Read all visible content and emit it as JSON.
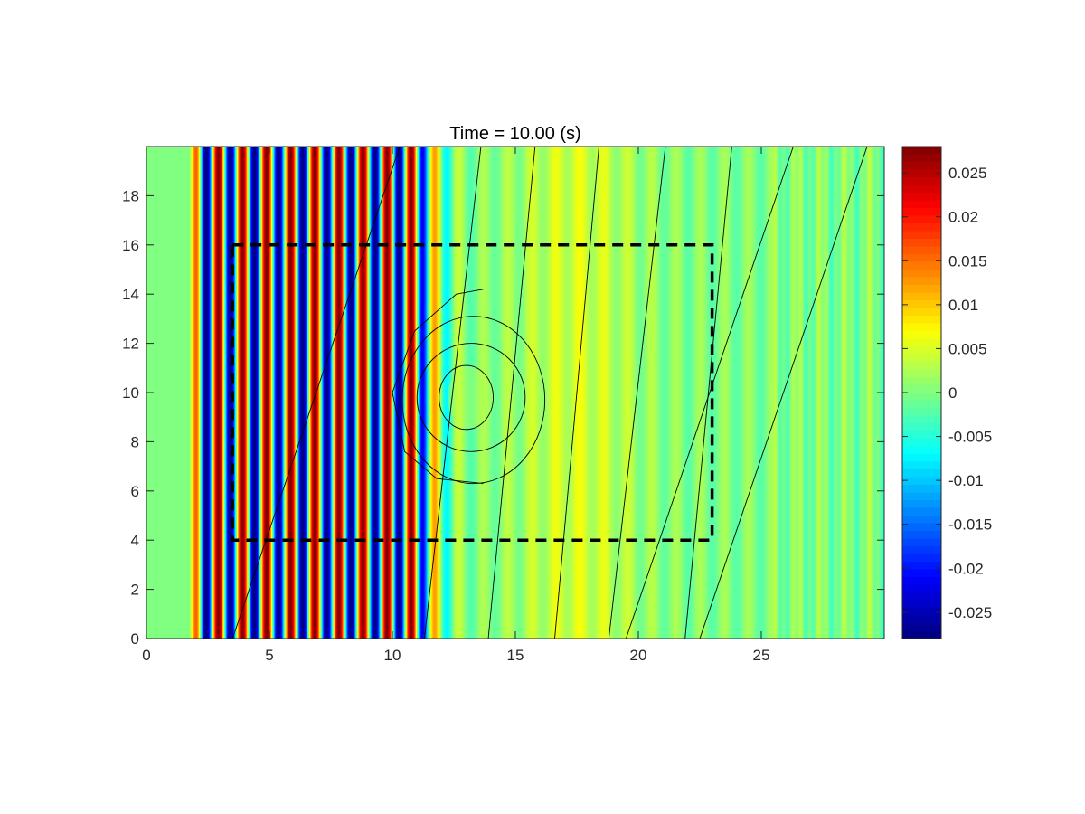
{
  "chart_data": {
    "type": "heatmap",
    "title": "Time = 10.00 (s)",
    "xlabel": "",
    "ylabel": "",
    "xlim": [
      0,
      30
    ],
    "ylim": [
      0,
      20
    ],
    "x_ticks": [
      0,
      5,
      10,
      15,
      20,
      25
    ],
    "x_tick_labels": [
      "0",
      "5",
      "10",
      "15",
      "20",
      "25"
    ],
    "y_ticks": [
      0,
      2,
      4,
      6,
      8,
      10,
      12,
      14,
      16,
      18
    ],
    "y_tick_labels": [
      "0",
      "2",
      "4",
      "6",
      "8",
      "10",
      "12",
      "14",
      "16",
      "18"
    ],
    "colormap": "jet",
    "clim": [
      -0.028,
      0.028
    ],
    "colorbar_ticks": [
      0.025,
      0.02,
      0.015,
      0.01,
      0.005,
      0,
      -0.005,
      -0.01,
      -0.015,
      -0.02,
      -0.025
    ],
    "colorbar_tick_labels": [
      "0.025",
      "0.02",
      "0.015",
      "0.01",
      "0.005",
      "0",
      "-0.005",
      "-0.01",
      "-0.015",
      "-0.02",
      "-0.025"
    ],
    "wave_field": {
      "wave_start_x": 1.7,
      "strong_wave_end_x": 11.0,
      "wavelength": 0.98,
      "peak_amplitude": 0.028,
      "phase_offset": 0.25
    },
    "dashed_rectangle": {
      "x": [
        3.5,
        23.0
      ],
      "y": [
        4.0,
        16.0
      ]
    },
    "contour_lines": {
      "slanted_line_bottom_x": [
        3.5,
        11.3,
        13.9,
        16.6,
        18.8,
        21.9
      ],
      "slanted_line_top_x": [
        10.3,
        13.6,
        15.8,
        18.4,
        21.1,
        23.8,
        26.3,
        29.3
      ],
      "rings": [
        {
          "cx": 13.0,
          "cy": 9.8,
          "rx": 1.1,
          "ry": 1.3
        },
        {
          "cx": 13.2,
          "cy": 9.8,
          "rx": 2.2,
          "ry": 2.2
        },
        {
          "cx": 13.3,
          "cy": 9.7,
          "rx": 2.9,
          "ry": 3.4
        }
      ],
      "open_arc": [
        [
          13.7,
          14.2
        ],
        [
          12.6,
          14.0
        ],
        [
          10.9,
          12.5
        ],
        [
          10.0,
          10.0
        ],
        [
          10.5,
          7.6
        ],
        [
          11.8,
          6.5
        ],
        [
          13.7,
          6.3
        ]
      ]
    }
  }
}
